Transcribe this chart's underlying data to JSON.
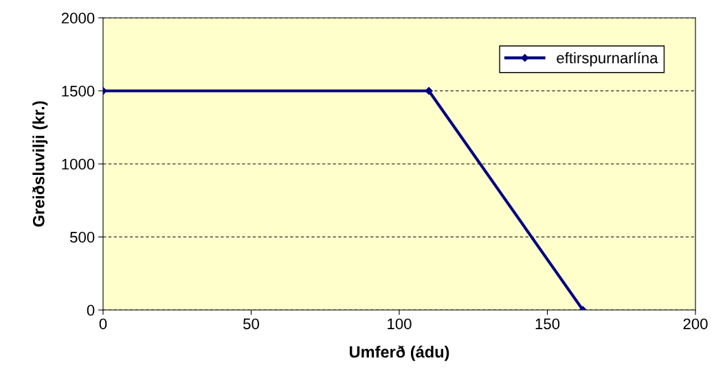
{
  "chart_data": {
    "type": "line",
    "xlabel": "Umferð (ádu)",
    "ylabel": "Greiðsluvilji (kr.)",
    "xlim": [
      0,
      200
    ],
    "xticks": [
      0,
      50,
      100,
      150,
      200
    ],
    "ylim": [
      0,
      2000
    ],
    "yticks": [
      0,
      500,
      1000,
      1500,
      2000
    ],
    "grid": "y",
    "legend": "top right",
    "marker": "diamond",
    "line_style": "solid",
    "series": [
      {
        "name": "eftirspurnarlína",
        "color": "#000080",
        "x": [
          0,
          110,
          162
        ],
        "values": [
          1500,
          1500,
          0
        ]
      }
    ]
  }
}
